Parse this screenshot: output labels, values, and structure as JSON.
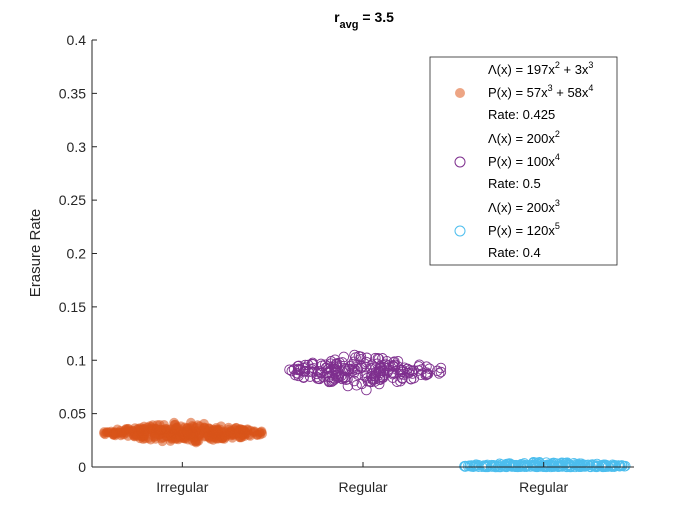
{
  "chart_data": {
    "type": "scatter",
    "title": {
      "base": "r",
      "sub": "avg",
      "rest": " = 3.5"
    },
    "xlabel": "",
    "ylabel": "Erasure Rate",
    "ylim": [
      0,
      0.4
    ],
    "yticks": [
      "0",
      "0.05",
      "0.1",
      "0.15",
      "0.2",
      "0.25",
      "0.3",
      "0.35",
      "0.4"
    ],
    "categories": [
      "Irregular",
      "Regular",
      "Regular"
    ],
    "grid": false,
    "legend_position": "top-right",
    "series": [
      {
        "category_index": 0,
        "marker": "filled-circle",
        "color": "#D95319",
        "legend_color": "#EDA584",
        "center": 0.032,
        "spread": 0.004,
        "n_points": 320,
        "legend": [
          [
            {
              "t": "Λ(x) = 197x"
            },
            {
              "t": "2",
              "sup": true
            },
            {
              "t": " + 3x"
            },
            {
              "t": "3",
              "sup": true
            }
          ],
          [
            {
              "t": "P(x) = 57x"
            },
            {
              "t": "3",
              "sup": true
            },
            {
              "t": " + 58x"
            },
            {
              "t": "4",
              "sup": true
            }
          ],
          [
            {
              "t": "Rate: 0.425"
            }
          ]
        ]
      },
      {
        "category_index": 1,
        "marker": "open-circle",
        "color": "#7E2F8E",
        "legend_color": "#7E2F8E",
        "center": 0.09,
        "spread": 0.006,
        "n_points": 220,
        "legend": [
          [
            {
              "t": "Λ(x) = 200x"
            },
            {
              "t": "2",
              "sup": true
            }
          ],
          [
            {
              "t": "P(x) = 100x"
            },
            {
              "t": "4",
              "sup": true
            }
          ],
          [
            {
              "t": "Rate: 0.5"
            }
          ]
        ]
      },
      {
        "category_index": 2,
        "marker": "open-circle",
        "color": "#4DBEEE",
        "legend_color": "#4DBEEE",
        "center": 0.001,
        "spread": 0.0015,
        "n_points": 260,
        "legend": [
          [
            {
              "t": "Λ(x) = 200x"
            },
            {
              "t": "3",
              "sup": true
            }
          ],
          [
            {
              "t": "P(x) = 120x"
            },
            {
              "t": "5",
              "sup": true
            }
          ],
          [
            {
              "t": "Rate: 0.4"
            }
          ]
        ]
      }
    ]
  }
}
